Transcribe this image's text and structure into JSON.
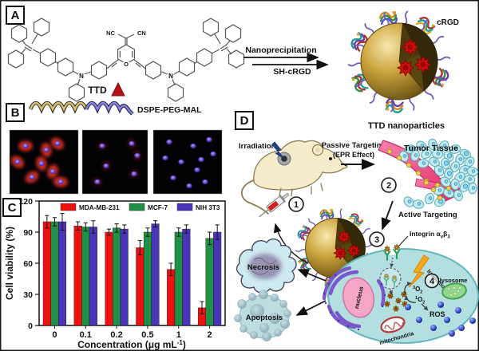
{
  "figure": {
    "panel_labels": {
      "a": "A",
      "b": "B",
      "c": "C",
      "d": "D"
    },
    "a": {
      "nitrile_left": "NC",
      "nitrile_right": "CN",
      "oxygen": "O",
      "nitrogen_left": "N",
      "nitrogen_right": "N",
      "molecule": "TTD",
      "arrow_top": "Nanoprecipitation",
      "arrow_bottom": "SH-cRGD",
      "crgd": "cRGD",
      "np_caption": "TTD nanoparticles"
    },
    "b": {
      "polymer": "DSPE-PEG-MAL"
    },
    "d": {
      "irradiation": "Irradiation",
      "passive_targeting": "Passive Targeting",
      "epr": "(EPR Effect)",
      "tumor_tissue": "Tumor Tissue",
      "active_targeting": "Active Targeting",
      "integrin": {
        "p1": "Integrin α",
        "s1": "v",
        "p2": "β",
        "s2": "3"
      },
      "steps": {
        "s1": "1",
        "s2": "2",
        "s3": "3",
        "s4": "4"
      },
      "necrosis": "Necrosis",
      "apoptosis": "Apoptosis",
      "nucleus": "nucleus",
      "mitochondria": "mitochondria",
      "lysosome": "lysosome",
      "ros": "ROS",
      "irradiation_cell": "Irradiation",
      "triplet_oxygen": {
        "sup": "3",
        "base": "O",
        "sub": "2"
      },
      "singlet_oxygen": {
        "sup": "1",
        "base": "O",
        "sub": "2"
      }
    }
  },
  "chart_data": {
    "type": "bar",
    "title": "",
    "ylabel": "Cell viability (%)",
    "xlabel": "Concentration (μg mL⁻¹)",
    "xlabel_parts": [
      "Concentration (μg mL",
      "-1",
      ")"
    ],
    "categories": [
      "0",
      "0.1",
      "0.2",
      "0.5",
      "1",
      "2"
    ],
    "ylim": [
      0,
      120
    ],
    "yticks": [
      0,
      30,
      60,
      90,
      120
    ],
    "grid": false,
    "legend_position": "top-inside",
    "series": [
      {
        "name": "MDA-MB-231",
        "color": "#ee1111",
        "values": [
          100,
          96,
          90,
          75,
          54,
          17
        ],
        "errors": [
          6,
          4,
          3,
          7,
          6,
          6
        ]
      },
      {
        "name": "MCF-7",
        "color": "#1e9147",
        "values": [
          100,
          95,
          94,
          90,
          90,
          84
        ],
        "errors": [
          4,
          4,
          4,
          4,
          4,
          6
        ]
      },
      {
        "name": "NIH 3T3",
        "color": "#4a35b8",
        "values": [
          100,
          95,
          93,
          98,
          93,
          90
        ],
        "errors": [
          8,
          6,
          4,
          3,
          4,
          7
        ]
      }
    ]
  },
  "colors": {
    "nanoparticle_gold": "#c9a23b",
    "aie_dot_red": "#d40f0f",
    "peg_purple": "#6a58c2",
    "ttd_triangle_red": "#b5121a",
    "tumor_vessel_pink": "#ee5c8d",
    "cell_cytoplasm": "#b3dfe1",
    "microscopy_nucleus": "#5b3fd4",
    "microscopy_cytoplasm_red": "#e03020"
  }
}
